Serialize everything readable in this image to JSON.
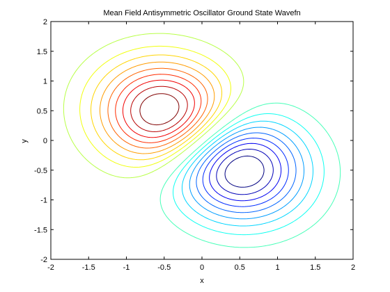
{
  "chart_data": {
    "type": "contour",
    "title": "Mean Field Antisymmetric Oscillator Ground State Wavefn",
    "xlabel": "x",
    "ylabel": "y",
    "xlim": [
      -2,
      2
    ],
    "ylim": [
      -2,
      2
    ],
    "x_ticks": [
      "-2",
      "-1.5",
      "-1",
      "-0.5",
      "0",
      "0.5",
      "1",
      "1.5",
      "2"
    ],
    "y_ticks": [
      "-2",
      "-1.5",
      "-1",
      "-0.5",
      "0",
      "0.5",
      "1",
      "1.5",
      "2"
    ],
    "grid": false,
    "colormap": "jet",
    "lobes": [
      {
        "sign": "positive",
        "center": [
          -0.45,
          0.42
        ],
        "color": "#ff0000"
      },
      {
        "sign": "negative",
        "center": [
          0.45,
          -0.42
        ],
        "color": "#0000cc"
      }
    ],
    "levels": [
      -0.9,
      -0.8,
      -0.7,
      -0.6,
      -0.5,
      -0.4,
      -0.3,
      -0.2,
      -0.1,
      0.1,
      0.2,
      0.3,
      0.4,
      0.5,
      0.6,
      0.7,
      0.8,
      0.9
    ],
    "axes_color": "#000000"
  }
}
